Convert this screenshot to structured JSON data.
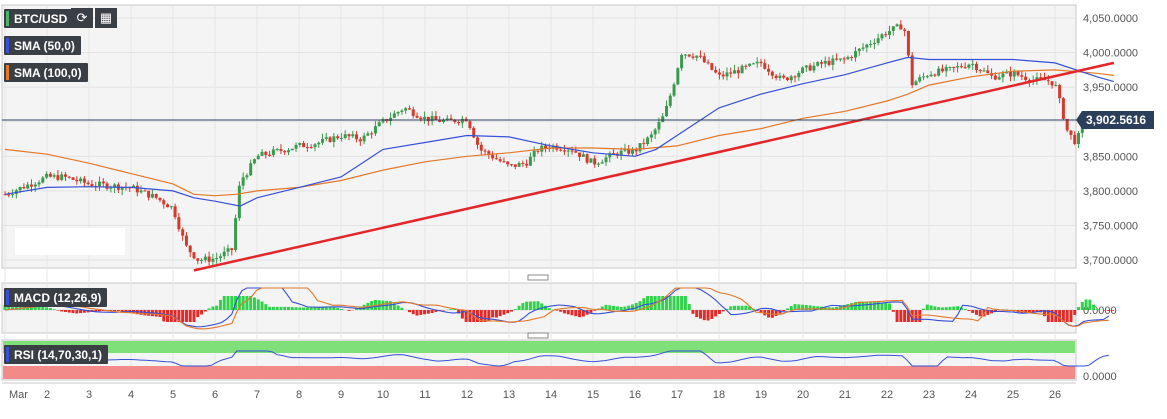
{
  "symbol": "BTC/USD",
  "indicators": {
    "sma50": {
      "label": "SMA (50,0)",
      "color": "#3650d8"
    },
    "sma100": {
      "label": "SMA (100,0)",
      "color": "#e3782a"
    },
    "macd": {
      "label": "MACD (12,26,9)"
    },
    "rsi": {
      "label": "RSI (14,70,30,1)"
    }
  },
  "toolbar": {
    "refresh_icon": "refresh-icon",
    "calendar_icon": "calendar-icon"
  },
  "chart_data": {
    "type": "candlestick",
    "symbol": "BTC/USD",
    "x_ticks": [
      "Mar",
      "2",
      "3",
      "4",
      "5",
      "6",
      "7",
      "8",
      "9",
      "10",
      "11",
      "12",
      "13",
      "14",
      "15",
      "16",
      "17",
      "18",
      "19",
      "20",
      "21",
      "22",
      "23",
      "24",
      "25",
      "26"
    ],
    "y_ticks": [
      "4,050.0000",
      "4,000.0000",
      "3,950.0000",
      "3,900.0000",
      "3,850.0000",
      "3,800.0000",
      "3,750.0000",
      "3,700.0000"
    ],
    "ylim": [
      3680,
      4060
    ],
    "current_price": "3,902.5616",
    "macd_ticks": [
      "0.0000"
    ],
    "rsi_ticks": [
      "0.0000"
    ],
    "price_path": [
      [
        0,
        3795
      ],
      [
        1,
        3820
      ],
      [
        1.4,
        3820
      ],
      [
        2,
        3810
      ],
      [
        3,
        3805
      ],
      [
        3.6,
        3790
      ],
      [
        4,
        3775
      ],
      [
        4.3,
        3720
      ],
      [
        4.6,
        3700
      ],
      [
        5,
        3702
      ],
      [
        5.4,
        3715
      ],
      [
        5.6,
        3815
      ],
      [
        5.8,
        3830
      ],
      [
        6,
        3850
      ],
      [
        7,
        3865
      ],
      [
        7.5,
        3870
      ],
      [
        8,
        3880
      ],
      [
        8.5,
        3875
      ],
      [
        9,
        3900
      ],
      [
        9.5,
        3920
      ],
      [
        10,
        3905
      ],
      [
        10.5,
        3900
      ],
      [
        11,
        3905
      ],
      [
        11.3,
        3860
      ],
      [
        11.6,
        3850
      ],
      [
        12,
        3835
      ],
      [
        12.4,
        3840
      ],
      [
        12.7,
        3860
      ],
      [
        13,
        3865
      ],
      [
        13.5,
        3860
      ],
      [
        14,
        3840
      ],
      [
        14.6,
        3855
      ],
      [
        15,
        3858
      ],
      [
        15.4,
        3880
      ],
      [
        15.7,
        3910
      ],
      [
        15.9,
        3950
      ],
      [
        16.1,
        4000
      ],
      [
        16.5,
        3995
      ],
      [
        17,
        3965
      ],
      [
        17.5,
        3975
      ],
      [
        18,
        3985
      ],
      [
        18.5,
        3960
      ],
      [
        19,
        3975
      ],
      [
        19.5,
        3985
      ],
      [
        20,
        3990
      ],
      [
        20.5,
        4010
      ],
      [
        21,
        4030
      ],
      [
        21.2,
        4035
      ],
      [
        21.4,
        4040
      ],
      [
        21.6,
        3955
      ],
      [
        22,
        3970
      ],
      [
        22.5,
        3975
      ],
      [
        23,
        3985
      ],
      [
        23.5,
        3965
      ],
      [
        24,
        3970
      ],
      [
        24.5,
        3960
      ],
      [
        24.8,
        3960
      ],
      [
        25,
        3955
      ],
      [
        25.3,
        3885
      ],
      [
        25.5,
        3870
      ],
      [
        25.7,
        3900
      ],
      [
        26,
        3905
      ],
      [
        26.4,
        3902
      ]
    ],
    "sma50_path": [
      [
        0,
        3795
      ],
      [
        1,
        3805
      ],
      [
        2,
        3806
      ],
      [
        3,
        3805
      ],
      [
        4,
        3800
      ],
      [
        4.5,
        3790
      ],
      [
        5,
        3785
      ],
      [
        5.6,
        3778
      ],
      [
        6,
        3790
      ],
      [
        7,
        3805
      ],
      [
        8,
        3820
      ],
      [
        8.5,
        3840
      ],
      [
        9,
        3860
      ],
      [
        10,
        3870
      ],
      [
        11,
        3880
      ],
      [
        12,
        3878
      ],
      [
        13,
        3865
      ],
      [
        14,
        3855
      ],
      [
        15,
        3850
      ],
      [
        15.5,
        3860
      ],
      [
        16,
        3880
      ],
      [
        17,
        3920
      ],
      [
        18,
        3940
      ],
      [
        19,
        3955
      ],
      [
        20,
        3968
      ],
      [
        21,
        3985
      ],
      [
        21.5,
        3993
      ],
      [
        22,
        3990
      ],
      [
        23,
        3990
      ],
      [
        24,
        3990
      ],
      [
        25,
        3985
      ],
      [
        26,
        3965
      ],
      [
        26.4,
        3958
      ]
    ],
    "sma100_path": [
      [
        0,
        3860
      ],
      [
        1,
        3853
      ],
      [
        2,
        3840
      ],
      [
        3,
        3825
      ],
      [
        4,
        3810
      ],
      [
        4.5,
        3795
      ],
      [
        5,
        3793
      ],
      [
        5.5,
        3795
      ],
      [
        6,
        3800
      ],
      [
        7,
        3805
      ],
      [
        8,
        3815
      ],
      [
        9,
        3830
      ],
      [
        10,
        3842
      ],
      [
        11,
        3850
      ],
      [
        12,
        3855
      ],
      [
        13,
        3862
      ],
      [
        14,
        3862
      ],
      [
        15,
        3860
      ],
      [
        16,
        3865
      ],
      [
        17,
        3880
      ],
      [
        18,
        3890
      ],
      [
        19,
        3905
      ],
      [
        20,
        3915
      ],
      [
        21,
        3930
      ],
      [
        21.5,
        3940
      ],
      [
        22,
        3953
      ],
      [
        23,
        3965
      ],
      [
        24,
        3973
      ],
      [
        25,
        3975
      ],
      [
        26,
        3970
      ],
      [
        26.4,
        3967
      ]
    ],
    "trendline": [
      [
        4.5,
        3685
      ],
      [
        26.4,
        3985
      ]
    ]
  }
}
